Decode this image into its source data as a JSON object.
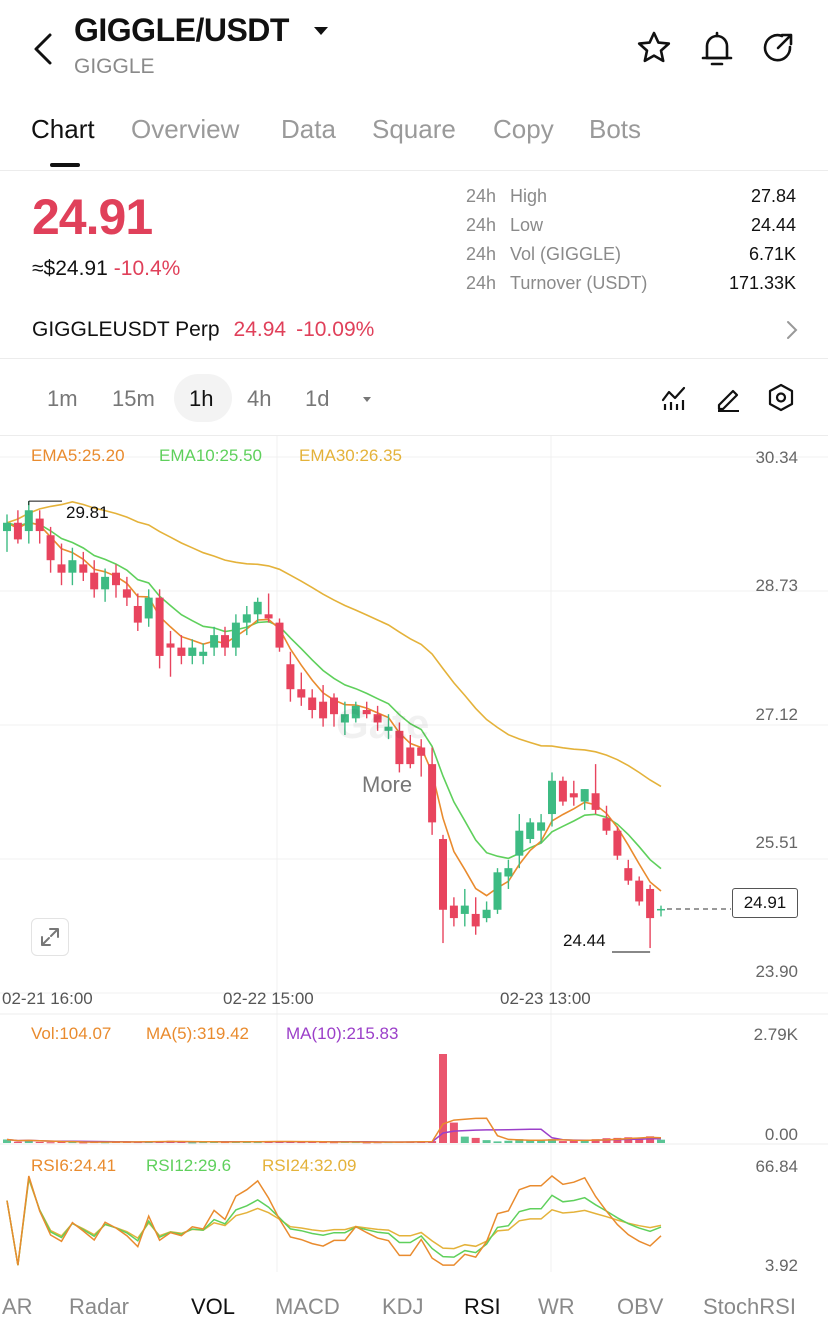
{
  "header": {
    "title": "GIGGLE/USDT",
    "subtitle": "GIGGLE"
  },
  "tabs": [
    "Chart",
    "Overview",
    "Data",
    "Square",
    "Copy",
    "Bots"
  ],
  "ticker": {
    "price": "24.91",
    "usd_price": "≈$24.91",
    "change_pct": "-10.4%",
    "stats": [
      {
        "prefix": "24h",
        "label": "High",
        "value": "27.84"
      },
      {
        "prefix": "24h",
        "label": "Low",
        "value": "24.44"
      },
      {
        "prefix": "24h",
        "label": "Vol (GIGGLE)",
        "value": "6.71K"
      },
      {
        "prefix": "24h",
        "label": "Turnover (USDT)",
        "value": "171.33K"
      }
    ],
    "perp": {
      "name": "GIGGLEUSDT Perp",
      "price": "24.94",
      "change": "-10.09%"
    }
  },
  "intervals": [
    "1m",
    "15m",
    "1h",
    "4h",
    "1d",
    "More"
  ],
  "selected_interval": "1h",
  "chart": {
    "ema_labels": [
      "EMA5:25.20",
      "EMA10:25.50",
      "EMA30:26.35"
    ],
    "price_axis": [
      "30.34",
      "28.73",
      "27.12",
      "25.51",
      "23.90"
    ],
    "high_label": "29.81",
    "low_label": "24.44",
    "last_price": "24.91",
    "dates": [
      "02-21 16:00",
      "02-22 15:00",
      "02-23 13:00"
    ],
    "watermark": "Gate"
  },
  "volume": {
    "labels": [
      "Vol:104.07",
      "MA(5):319.42",
      "MA(10):215.83"
    ],
    "axis": [
      "2.79K",
      "0.00"
    ]
  },
  "rsi": {
    "labels": [
      "RSI6:24.41",
      "RSI12:29.6",
      "RSI24:32.09"
    ],
    "axis": [
      "66.84",
      "3.92"
    ]
  },
  "indicator_tabs": [
    "AR",
    "Radar",
    "VOL",
    "MACD",
    "KDJ",
    "RSI",
    "WR",
    "OBV",
    "StochRSI"
  ],
  "colors": {
    "up": "#3dbb83",
    "down": "#e8445e",
    "ema5": "#e98b2e",
    "ema10": "#5fd05c",
    "ema30": "#e4b23a",
    "ma10": "#9b3fc9"
  },
  "chart_data": {
    "type": "candlestick",
    "ylim": [
      23.9,
      30.34
    ],
    "candles": [
      [
        29.45,
        29.65,
        29.2,
        29.55
      ],
      [
        29.55,
        29.7,
        29.3,
        29.35
      ],
      [
        29.45,
        29.81,
        29.3,
        29.7
      ],
      [
        29.6,
        29.7,
        29.3,
        29.45
      ],
      [
        29.4,
        29.5,
        28.95,
        29.1
      ],
      [
        29.05,
        29.3,
        28.8,
        28.95
      ],
      [
        28.95,
        29.25,
        28.8,
        29.1
      ],
      [
        29.05,
        29.2,
        28.85,
        28.95
      ],
      [
        28.95,
        29.1,
        28.65,
        28.75
      ],
      [
        28.75,
        29.0,
        28.6,
        28.9
      ],
      [
        28.95,
        29.05,
        28.65,
        28.8
      ],
      [
        28.75,
        28.9,
        28.55,
        28.65
      ],
      [
        28.55,
        28.7,
        28.25,
        28.35
      ],
      [
        28.4,
        28.75,
        28.3,
        28.65
      ],
      [
        28.65,
        28.75,
        27.8,
        27.95
      ],
      [
        28.1,
        28.25,
        27.7,
        28.05
      ],
      [
        28.05,
        28.2,
        27.85,
        27.95
      ],
      [
        27.95,
        28.15,
        27.85,
        28.05
      ],
      [
        27.95,
        28.1,
        27.85,
        28.0
      ],
      [
        28.05,
        28.3,
        27.95,
        28.2
      ],
      [
        28.2,
        28.3,
        27.95,
        28.05
      ],
      [
        28.05,
        28.45,
        27.95,
        28.35
      ],
      [
        28.35,
        28.55,
        28.2,
        28.45
      ],
      [
        28.45,
        28.65,
        28.35,
        28.6
      ],
      [
        28.45,
        28.7,
        28.35,
        28.4
      ],
      [
        28.35,
        28.4,
        28.0,
        28.05
      ],
      [
        27.85,
        28.0,
        27.4,
        27.55
      ],
      [
        27.55,
        27.75,
        27.35,
        27.45
      ],
      [
        27.45,
        27.55,
        27.2,
        27.3
      ],
      [
        27.4,
        27.6,
        27.1,
        27.2
      ],
      [
        27.45,
        27.5,
        27.1,
        27.25
      ],
      [
        27.15,
        27.4,
        27.0,
        27.25
      ],
      [
        27.2,
        27.4,
        27.15,
        27.35
      ],
      [
        27.3,
        27.4,
        27.2,
        27.25
      ],
      [
        27.25,
        27.35,
        27.05,
        27.15
      ],
      [
        27.05,
        27.25,
        26.95,
        27.1
      ],
      [
        27.05,
        27.15,
        26.55,
        26.65
      ],
      [
        26.85,
        27.0,
        26.6,
        26.65
      ],
      [
        26.85,
        26.95,
        26.5,
        26.75
      ],
      [
        26.65,
        26.85,
        25.8,
        25.95
      ],
      [
        25.75,
        25.8,
        24.5,
        24.9
      ],
      [
        24.95,
        25.05,
        24.7,
        24.8
      ],
      [
        24.85,
        25.15,
        24.7,
        24.95
      ],
      [
        24.85,
        25.05,
        24.6,
        24.7
      ],
      [
        24.8,
        25.0,
        24.75,
        24.9
      ],
      [
        24.9,
        25.4,
        24.85,
        25.35
      ],
      [
        25.3,
        25.5,
        25.15,
        25.4
      ],
      [
        25.55,
        26.05,
        25.4,
        25.85
      ],
      [
        25.75,
        26.0,
        25.7,
        25.95
      ],
      [
        25.85,
        26.05,
        25.7,
        25.95
      ],
      [
        26.05,
        26.55,
        25.9,
        26.45
      ],
      [
        26.45,
        26.5,
        26.15,
        26.2
      ],
      [
        26.3,
        26.45,
        26.15,
        26.25
      ],
      [
        26.2,
        26.35,
        26.1,
        26.35
      ],
      [
        26.3,
        26.65,
        26.05,
        26.1
      ],
      [
        26.0,
        26.15,
        25.8,
        25.85
      ],
      [
        25.85,
        25.9,
        25.5,
        25.55
      ],
      [
        25.4,
        25.5,
        25.2,
        25.25
      ],
      [
        25.25,
        25.3,
        24.95,
        25.0
      ],
      [
        25.15,
        25.2,
        24.44,
        24.8
      ],
      [
        24.9,
        24.95,
        24.82,
        24.91
      ]
    ],
    "volumes": [
      110,
      40,
      90,
      35,
      25,
      40,
      30,
      20,
      30,
      25,
      45,
      40,
      30,
      60,
      40,
      70,
      35,
      20,
      30,
      40,
      30,
      50,
      45,
      30,
      60,
      55,
      40,
      30,
      35,
      30,
      25,
      40,
      30,
      20,
      25,
      30,
      35,
      50,
      45,
      60,
      2790,
      640,
      200,
      160,
      90,
      50,
      70,
      120,
      100,
      80,
      120,
      60,
      70,
      80,
      120,
      150,
      160,
      180,
      170,
      210,
      104
    ]
  }
}
